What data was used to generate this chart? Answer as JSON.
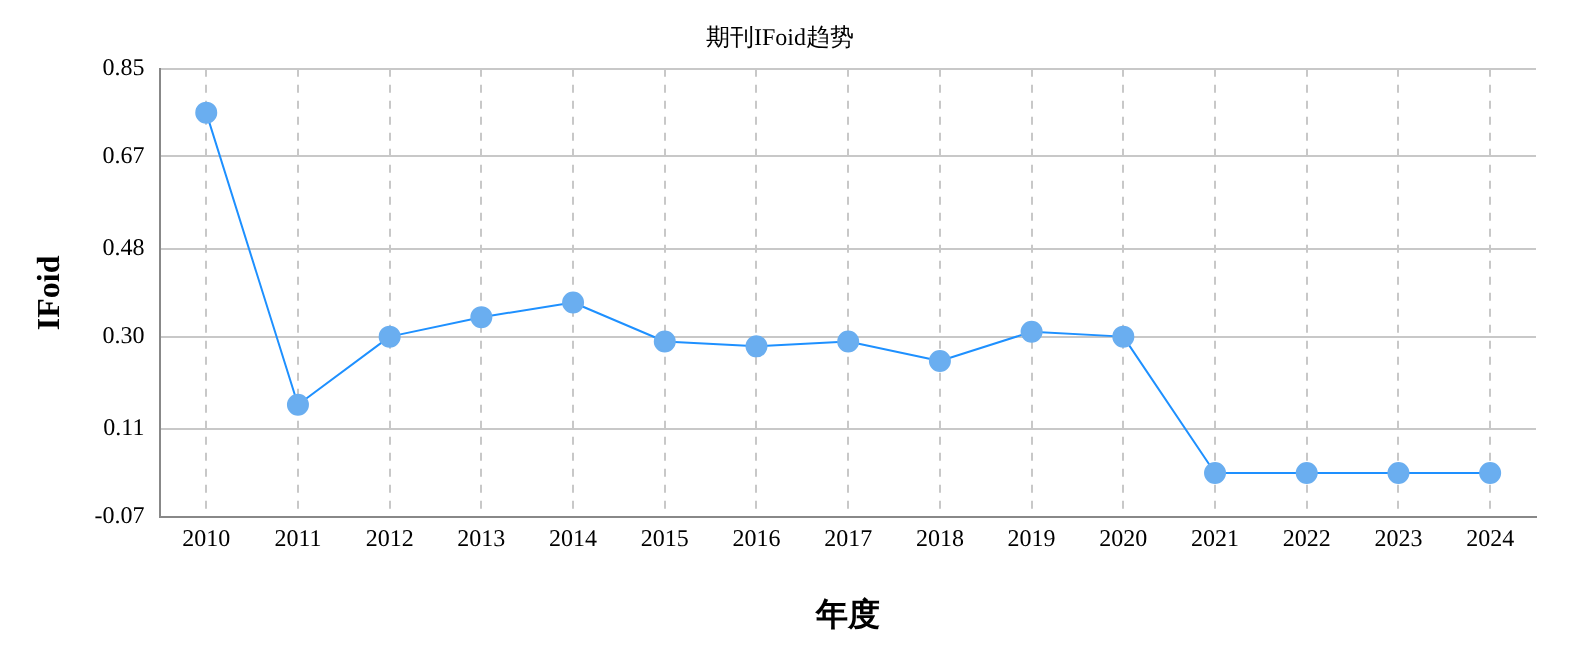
{
  "chart_data": {
    "type": "line",
    "title": "期刊IFoid趋势",
    "xlabel": "年度",
    "ylabel": "IFoid",
    "categories": [
      "2010",
      "2011",
      "2012",
      "2013",
      "2014",
      "2015",
      "2016",
      "2017",
      "2018",
      "2019",
      "2020",
      "2021",
      "2022",
      "2023",
      "2024"
    ],
    "series": [
      {
        "color": "#1e90ff",
        "values": [
          0.76,
          0.16,
          0.3,
          0.34,
          0.37,
          0.29,
          0.28,
          0.29,
          0.25,
          0.31,
          0.3,
          0.02,
          0.02,
          0.02,
          0.02
        ]
      }
    ],
    "ylim": [
      -0.07,
      0.85
    ],
    "yticks": [
      -0.07,
      0.11,
      {
        "value": 0.3,
        "label": "0.30"
      },
      0.48,
      0.67,
      0.85
    ],
    "grid": true,
    "marker": "circle",
    "legend": false
  }
}
